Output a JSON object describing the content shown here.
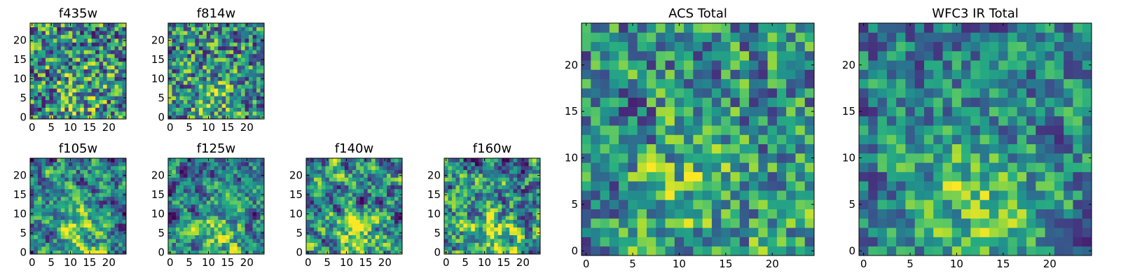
{
  "figure": {
    "colormap": "viridis",
    "colors": {
      "low": "#440154",
      "mid": "#21918c",
      "high": "#fde725",
      "axis": "#000000",
      "background": "#ffffff"
    }
  },
  "chart_data": [
    {
      "type": "heatmap",
      "title": "f435w",
      "grid": [
        25,
        25
      ],
      "xlim": [
        0,
        24
      ],
      "ylim": [
        0,
        24
      ],
      "xticks": [
        0,
        5,
        10,
        15,
        20
      ],
      "yticks": [
        0,
        5,
        10,
        15,
        20
      ],
      "seed": 435,
      "contrast": 1.1,
      "smooth": 0.1,
      "center_bias": 0.2
    },
    {
      "type": "heatmap",
      "title": "f814w",
      "grid": [
        25,
        25
      ],
      "xlim": [
        0,
        24
      ],
      "ylim": [
        0,
        24
      ],
      "xticks": [
        0,
        5,
        10,
        15,
        20
      ],
      "yticks": [
        0,
        5,
        10,
        15,
        20
      ],
      "seed": 814,
      "contrast": 1.1,
      "smooth": 0.1,
      "center_bias": 0.3
    },
    {
      "type": "heatmap",
      "title": "f105w",
      "grid": [
        25,
        25
      ],
      "xlim": [
        0,
        24
      ],
      "ylim": [
        0,
        24
      ],
      "xticks": [
        0,
        5,
        10,
        15,
        20
      ],
      "yticks": [
        0,
        5,
        10,
        15,
        20
      ],
      "seed": 105,
      "contrast": 1.3,
      "smooth": 0.6,
      "center_bias": 0.4
    },
    {
      "type": "heatmap",
      "title": "f125w",
      "grid": [
        25,
        25
      ],
      "xlim": [
        0,
        24
      ],
      "ylim": [
        0,
        24
      ],
      "xticks": [
        0,
        5,
        10,
        15,
        20
      ],
      "yticks": [
        0,
        5,
        10,
        15,
        20
      ],
      "seed": 125,
      "contrast": 1.3,
      "smooth": 0.6,
      "center_bias": 0.4
    },
    {
      "type": "heatmap",
      "title": "f140w",
      "grid": [
        25,
        25
      ],
      "xlim": [
        0,
        24
      ],
      "ylim": [
        0,
        24
      ],
      "xticks": [
        0,
        5,
        10,
        15,
        20
      ],
      "yticks": [
        0,
        5,
        10,
        15,
        20
      ],
      "seed": 140,
      "contrast": 1.3,
      "smooth": 0.6,
      "center_bias": 0.4
    },
    {
      "type": "heatmap",
      "title": "f160w",
      "grid": [
        25,
        25
      ],
      "xlim": [
        0,
        24
      ],
      "ylim": [
        0,
        24
      ],
      "xticks": [
        0,
        5,
        10,
        15,
        20
      ],
      "yticks": [
        0,
        5,
        10,
        15,
        20
      ],
      "seed": 160,
      "contrast": 1.3,
      "smooth": 0.6,
      "center_bias": 0.4
    },
    {
      "type": "heatmap",
      "title": "ACS Total",
      "grid": [
        25,
        25
      ],
      "xlim": [
        0,
        24
      ],
      "ylim": [
        0,
        24
      ],
      "xticks": [
        0,
        5,
        10,
        15,
        20
      ],
      "yticks": [
        0,
        5,
        10,
        15,
        20
      ],
      "seed": 1001,
      "contrast": 1.0,
      "smooth": 0.25,
      "center_bias": 0.3
    },
    {
      "type": "heatmap",
      "title": "WFC3 IR Total",
      "grid": [
        25,
        25
      ],
      "xlim": [
        0,
        24
      ],
      "ylim": [
        0,
        24
      ],
      "xticks": [
        0,
        5,
        10,
        15,
        20
      ],
      "yticks": [
        0,
        5,
        10,
        15,
        20
      ],
      "seed": 2002,
      "contrast": 1.0,
      "smooth": 0.35,
      "center_bias": 0.6
    }
  ]
}
